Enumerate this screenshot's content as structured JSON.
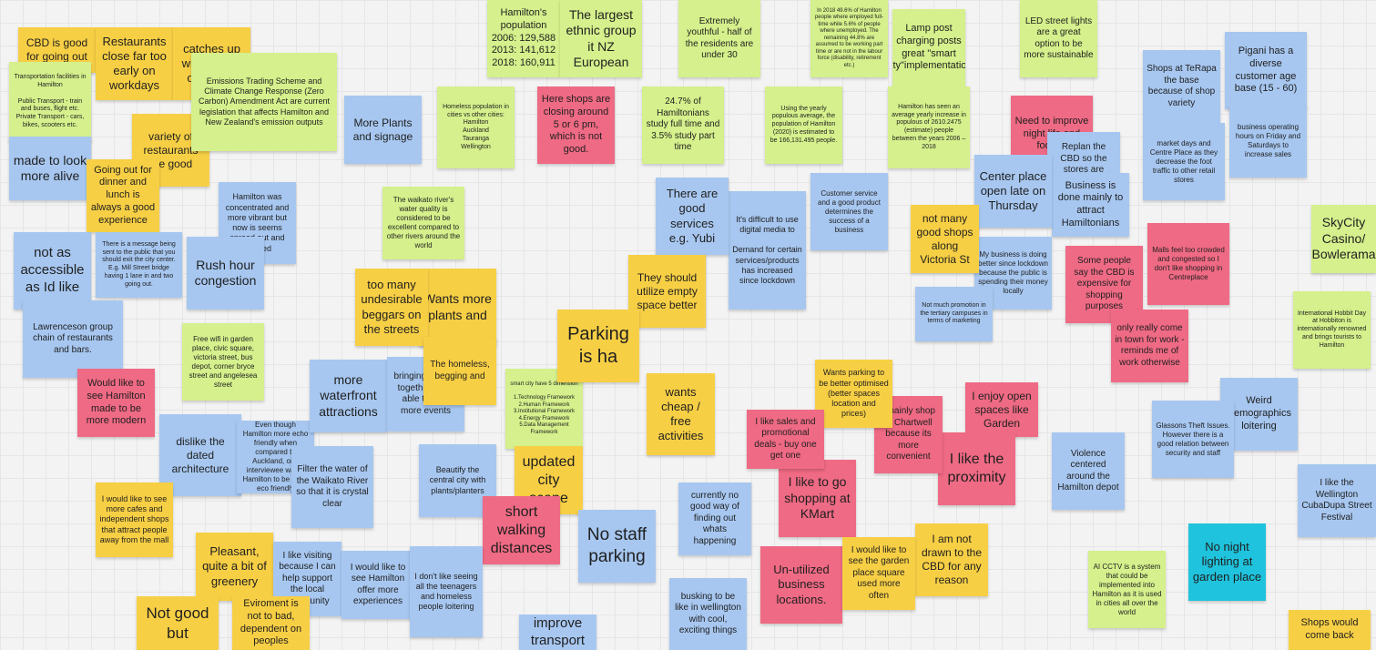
{
  "notes": [
    "CBD is good for going out",
    "Restaurants close far too early on workdays",
    "catches up with friends over food",
    "Transportation facilities in Hamilton\n\nPublic Transport - train and buses, flight etc.\nPrivate Transport - cars, bikes, scooters etc.",
    "variety of restaurants are good",
    "made to look more alive",
    "Going out for dinner and lunch is always a good experience",
    "Hamilton was concentrated and more vibrant but now is seems spread out and isolated",
    "not as accessible as Id like",
    "There is a message being sent to the public that you should exit the city center. E.g. Mill Street bridge having 1 lane in and two going out.",
    "Rush hour congestion",
    "Lawrenceson group chain of restaurants and bars.",
    "Free wifi in garden place, civic square, victoria street, bus depot, corner bryce street and angelesea street",
    "Would like to see Hamilton made to be more modern",
    "dislike the dated architecture",
    "Even though Hamilton more echo friendly when compared to Auckland, one interviewee wants Hamilton to be more eco friendly",
    "more waterfront attractions",
    "bringing spaces together to be able to host more events",
    "smart city have 5 dimension\n\n1.Technology Framework\n2.Human Framework\n3.Institutional Framework\n4.Energy Framework\n5.Data Management Framework",
    "Filter the water of the Waikato River so that it is crystal clear",
    "Beautify the central city with plants/planters",
    "updated city scape",
    "short walking distances",
    "No staff parking",
    "I would like to see more cafes and independent shops that attract people away from the mall",
    "Pleasant, quite a bit of greenery",
    "I like visiting because I can help support the local community",
    "I would like to see Hamilton offer more experiences",
    "Not good but",
    "Eviroment is not to bad, dependent on peoples",
    "improve transport",
    "Hamilton's population\n2006: 129,588\n2013: 141,612\n2018: 160,911",
    "The largest ethnic group it NZ European",
    "Extremely youthful - half of the residents are under 30",
    "In 2018 49.6% of Hamilton people where employed full-time while 5.6% of people where unemployed. The remaining 44.8% are assumed to be working part time or are not in the labour force (disability, retirement etc.)",
    "Lamp post charging posts great \"smart city\"implementation",
    "LED street lights are a great option to be more sustainable",
    "Emissions Trading Scheme and Climate Change Response (Zero Carbon) Amendment Act are current legislation that affects Hamilton and New Zealand's emission outputs",
    "More Plants and signage",
    "Homeless population in cities vs other cities:\nHamilton\nAuckland\nTauranga\nWellington",
    "Here shops are closing around 5 or 6 pm, which is not good.",
    "24.7% of Hamiltonians study full time and 3.5% study part time",
    "Using the yearly populous average, the population of Hamilton (2020) is estimated to be 166,131.495 people.",
    "Hamilton has seen an average yearly increase in populous of 2610.2475 (estimate) people between the years 2006 – 2018",
    "Shops at TeRapa the base because of shop variety",
    "Pigani has a diverse customer age base (15 - 60)",
    "Need to improve night life and food in",
    "Replan the CBD so the stores are central and closer together",
    "market days and Centre Place as they decrease the foot traffic to other retail stores",
    "business operating hours on Friday and Saturdays to increase sales",
    "Business is done mainly to attract Hamiltonians",
    "SkyCity Casino/ Bowlerama",
    "Center place open late on Thursday",
    "My business is doing better since lockdown because the public is spending their money locally",
    "Some people say the CBD is expensive for shopping purposes",
    "Malls feel too crowded and congested so I don't like shopping in Centreplace",
    "only really come in town for work - reminds me of work otherwise",
    "International Hobbit Day at Hobbiton is internationally renowned and brings tourists to Hamilton",
    "Weird Demographics loitering",
    "Glassons Theft Issues. However there is a good relation between security and staff",
    "Violence centered around the Hamilton depot",
    "No night lighting at garden place",
    "AI CCTV is a system that could be implemented into Hamilton as it is used in cities all over the world",
    "I like the Wellington CubaDupa Street Festival",
    "Shops would come back",
    "I am not drawn to the CBD for any reason",
    "I enjoy open spaces like Garden",
    "I like the proximity",
    "I mainly shop in Chartwell because its more convenient",
    "I like to go shopping at KMart",
    "Un-utilized business locations.",
    "I would like to see the garden place square used more often",
    "not many good shops along Victoria St",
    "Customer service and a good product determines the success of a business",
    "Not much promotion in the tertiary campuses in terms of marketing",
    "It's difficult to use digital media to\n\nDemand for certain services/products has increased since lockdown",
    "Wants parking to be better optimised (better spaces location and prices)",
    "I like sales and promotional deals - buy one get one",
    "currently no good way of finding out whats happening",
    "busking to be like in wellington with cool, exciting things",
    "There are good services e.g. Yubi",
    "They should utilize empty space better",
    "Parking is ha",
    "wants cheap / free activities",
    "Wants more plants and",
    "too many undesirable beggars on the streets",
    "The waikato river's water quality is considered to be excellent compared to other rivers around the world",
    "The homeless, begging and",
    "I don't like seeing all the teenagers and homeless people loitering"
  ]
}
